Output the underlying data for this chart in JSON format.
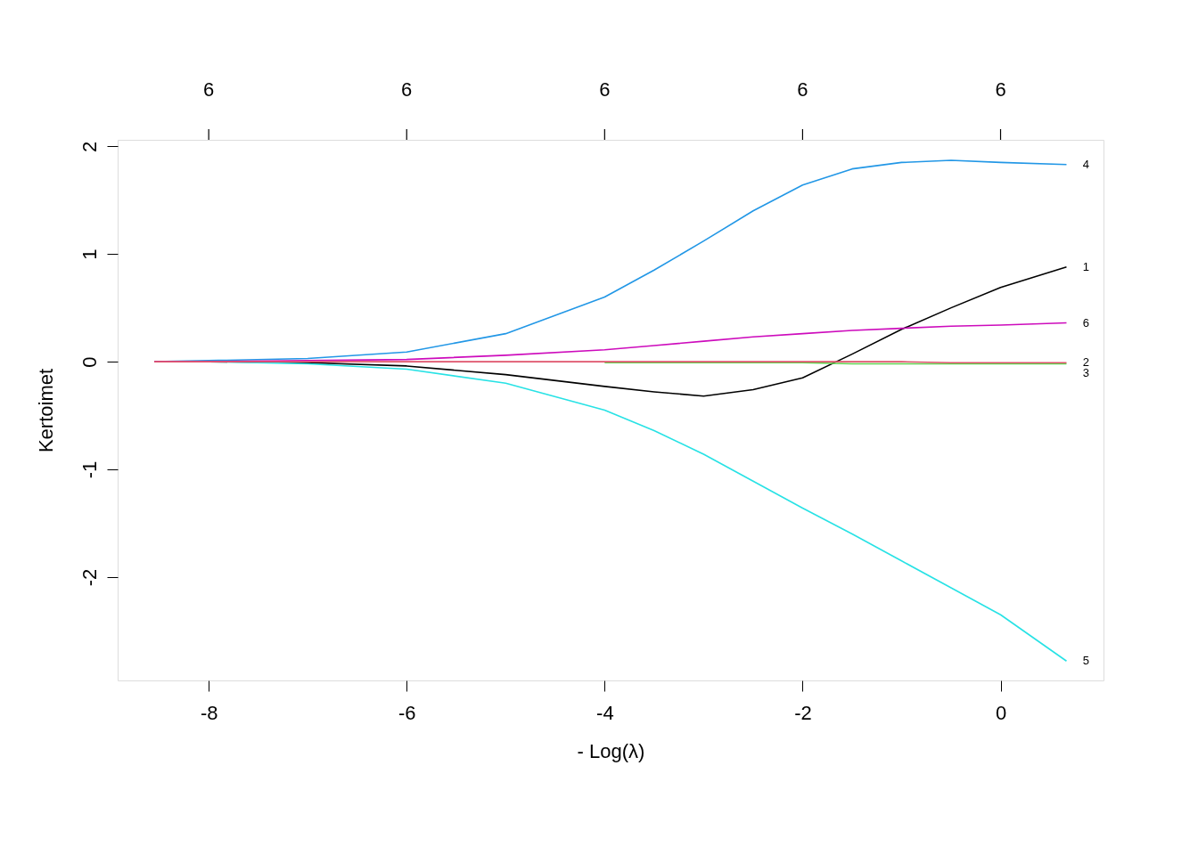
{
  "chart_data": {
    "type": "line",
    "xlabel": "- Log(λ)",
    "ylabel": "Kertoimet",
    "x": [
      -8.55,
      -8,
      -7,
      -6,
      -5,
      -4,
      -3.5,
      -3,
      -2.5,
      -2,
      -1.5,
      -1,
      -0.5,
      0,
      0.666
    ],
    "series": [
      {
        "name": "1",
        "color": "#000000",
        "values": [
          0,
          0,
          -0.01,
          -0.04,
          -0.12,
          -0.23,
          -0.28,
          -0.32,
          -0.26,
          -0.15,
          0.07,
          0.3,
          0.5,
          0.69,
          0.88
        ]
      },
      {
        "name": "2",
        "color": "#df536b",
        "values": [
          0,
          0,
          0,
          0,
          0,
          0,
          0,
          0,
          0,
          0,
          0,
          0,
          -0.01,
          -0.01,
          -0.01
        ]
      },
      {
        "name": "3",
        "color": "#61d04f",
        "values": [
          null,
          null,
          null,
          null,
          null,
          -0.01,
          -0.01,
          -0.01,
          -0.01,
          -0.01,
          -0.02,
          -0.02,
          -0.02,
          -0.02,
          -0.02
        ]
      },
      {
        "name": "4",
        "color": "#2297e6",
        "values": [
          0,
          0.01,
          0.03,
          0.09,
          0.26,
          0.6,
          0.85,
          1.12,
          1.4,
          1.64,
          1.79,
          1.85,
          1.87,
          1.85,
          1.83
        ]
      },
      {
        "name": "5",
        "color": "#28e2e5",
        "values": [
          0,
          0,
          -0.02,
          -0.07,
          -0.2,
          -0.45,
          -0.64,
          -0.86,
          -1.11,
          -1.36,
          -1.6,
          -1.85,
          -2.1,
          -2.35,
          -2.78
        ]
      },
      {
        "name": "6",
        "color": "#cd0bbc",
        "values": [
          0,
          0,
          0.01,
          0.02,
          0.06,
          0.11,
          0.15,
          0.19,
          0.23,
          0.26,
          0.29,
          0.31,
          0.33,
          0.34,
          0.36
        ]
      }
    ],
    "xlim": [
      -8.92,
      1.04
    ],
    "ylim": [
      -2.96,
      2.06
    ],
    "xticks": [
      -8,
      -6,
      -4,
      -2,
      0
    ],
    "yticks": [
      -2,
      -1,
      0,
      1,
      2
    ],
    "annotations": [
      "6",
      "6",
      "6",
      "6",
      "6"
    ],
    "grid": false,
    "marker": "none",
    "line_style": "solid"
  }
}
